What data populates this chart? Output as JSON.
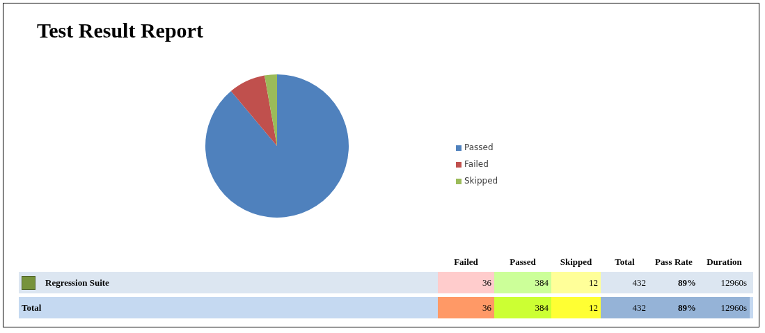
{
  "chart_data": [
    {
      "type": "pie",
      "title": "Test Result Report",
      "categories": [
        "Passed",
        "Failed",
        "Skipped"
      ],
      "values": [
        88.9,
        8.3,
        2.8
      ],
      "colors": [
        "#4f81bd",
        "#c0504d",
        "#9bbb59"
      ],
      "legend": "right"
    },
    {
      "type": "other",
      "categories": [
        "Failed",
        "Passed",
        "Skipped",
        "Total",
        "Pass Rate",
        "Duration"
      ],
      "y_categories": [
        "Regression Suite",
        "Total"
      ],
      "cell_labels": [
        [
          "36",
          "384",
          "12",
          "432",
          "89%",
          "12960s"
        ],
        [
          "36",
          "384",
          "12",
          "432",
          "89%",
          "12960s"
        ]
      ]
    }
  ]
}
